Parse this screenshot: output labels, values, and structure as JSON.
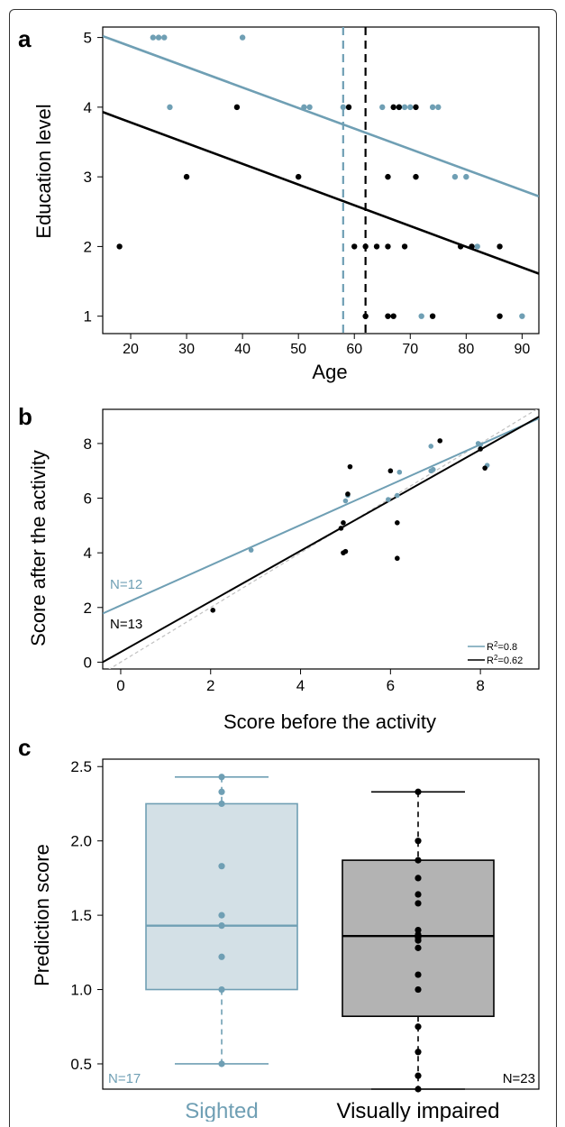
{
  "colors": {
    "sighted": "#6f9fb4",
    "impaired": "#000000",
    "box_sighted_fill": "#d3e0e6",
    "box_impaired_fill": "#b3b3b3",
    "ref_line": "#c0c0c0"
  },
  "chart_data": [
    {
      "panel": "a",
      "type": "scatter",
      "xlabel": "Age",
      "ylabel": "Education level",
      "xlim": [
        15,
        93
      ],
      "ylim": [
        0.75,
        5.15
      ],
      "xticks": [
        20,
        30,
        40,
        50,
        60,
        70,
        80,
        90
      ],
      "yticks": [
        1,
        2,
        3,
        4,
        5
      ],
      "series": [
        {
          "group": "sighted",
          "points": [
            [
              24,
              5
            ],
            [
              25,
              5
            ],
            [
              26,
              5
            ],
            [
              40,
              5
            ],
            [
              27,
              4
            ],
            [
              51,
              4
            ],
            [
              52,
              4
            ],
            [
              58,
              4
            ],
            [
              65,
              4
            ],
            [
              68,
              4
            ],
            [
              69,
              4
            ],
            [
              70,
              4
            ],
            [
              74,
              4
            ],
            [
              75,
              4
            ],
            [
              78,
              3
            ],
            [
              80,
              3
            ],
            [
              82,
              2
            ],
            [
              72,
              1
            ],
            [
              90,
              1
            ]
          ],
          "fit": [
            [
              15,
              5.02
            ],
            [
              93,
              2.72
            ]
          ],
          "mean_age": 58
        },
        {
          "group": "impaired",
          "points": [
            [
              39,
              4
            ],
            [
              59,
              4
            ],
            [
              67,
              4
            ],
            [
              68,
              4
            ],
            [
              71,
              4
            ],
            [
              30,
              3
            ],
            [
              50,
              3
            ],
            [
              66,
              3
            ],
            [
              71,
              3
            ],
            [
              18,
              2
            ],
            [
              60,
              2
            ],
            [
              62,
              2
            ],
            [
              64,
              2
            ],
            [
              66,
              2
            ],
            [
              69,
              2
            ],
            [
              79,
              2
            ],
            [
              81,
              2
            ],
            [
              86,
              2
            ],
            [
              62,
              1
            ],
            [
              66,
              1
            ],
            [
              67,
              1
            ],
            [
              74,
              1
            ],
            [
              86,
              1
            ]
          ],
          "fit": [
            [
              15,
              3.93
            ],
            [
              93,
              1.61
            ]
          ],
          "mean_age": 62
        }
      ]
    },
    {
      "panel": "b",
      "type": "scatter",
      "xlabel": "Score before the activity",
      "ylabel": "Score after the activity",
      "xlim": [
        -0.4,
        9.3
      ],
      "ylim": [
        -0.25,
        9.25
      ],
      "xticks": [
        0,
        2,
        4,
        6,
        8
      ],
      "yticks": [
        0,
        2,
        4,
        6,
        8
      ],
      "annotations": {
        "n_sighted": "N=12",
        "n_impaired": "N=13",
        "r2_sighted": "0.8",
        "r2_impaired": "0.62",
        "r2_prefix": "R",
        "r2_sup": "2"
      },
      "series": [
        {
          "group": "sighted",
          "points": [
            [
              2.9,
              4.1
            ],
            [
              5.0,
              5.9
            ],
            [
              5.95,
              5.95
            ],
            [
              6.15,
              6.1
            ],
            [
              6.2,
              6.95
            ],
            [
              6.9,
              7.9
            ],
            [
              6.9,
              7.0
            ],
            [
              6.95,
              7.05
            ],
            [
              7.95,
              8.0
            ],
            [
              8.15,
              7.2
            ],
            [
              8.0,
              7.95
            ],
            [
              5.05,
              6.1
            ]
          ],
          "fit": [
            [
              -0.4,
              1.78
            ],
            [
              9.3,
              8.92
            ]
          ]
        },
        {
          "group": "impaired",
          "points": [
            [
              2.05,
              1.9
            ],
            [
              4.9,
              4.9
            ],
            [
              4.95,
              5.1
            ],
            [
              4.95,
              4.0
            ],
            [
              5.0,
              4.05
            ],
            [
              5.1,
              7.15
            ],
            [
              6.0,
              7.0
            ],
            [
              6.15,
              5.1
            ],
            [
              6.15,
              3.8
            ],
            [
              7.1,
              8.1
            ],
            [
              8.0,
              7.8
            ],
            [
              8.1,
              7.1
            ],
            [
              5.05,
              6.15
            ]
          ],
          "fit": [
            [
              -0.4,
              0.0
            ],
            [
              9.3,
              8.98
            ]
          ]
        }
      ]
    },
    {
      "panel": "c",
      "type": "box",
      "ylabel": "Prediction score",
      "ylim": [
        0.33,
        2.55
      ],
      "yticks": [
        "0.5",
        "1.0",
        "1.5",
        "2.0",
        "2.5"
      ],
      "ytick_values": [
        0.5,
        1.0,
        1.5,
        2.0,
        2.5
      ],
      "categories": [
        "Sighted",
        "Visually impaired"
      ],
      "series": [
        {
          "group": "sighted",
          "n_label": "N=17",
          "min": 0.5,
          "q1": 1.0,
          "median": 1.43,
          "q3": 2.25,
          "max": 2.43,
          "points": [
            2.43,
            2.33,
            2.25,
            1.83,
            1.5,
            1.43,
            1.22,
            1.0,
            0.5
          ]
        },
        {
          "group": "impaired",
          "n_label": "N=23",
          "min": 0.33,
          "q1": 0.82,
          "median": 1.36,
          "q3": 1.87,
          "max": 2.33,
          "points": [
            2.33,
            2.0,
            1.87,
            1.75,
            1.64,
            1.58,
            1.4,
            1.37,
            1.35,
            1.33,
            1.28,
            1.1,
            1.0,
            0.75,
            0.58,
            0.42,
            0.33
          ]
        }
      ]
    }
  ]
}
